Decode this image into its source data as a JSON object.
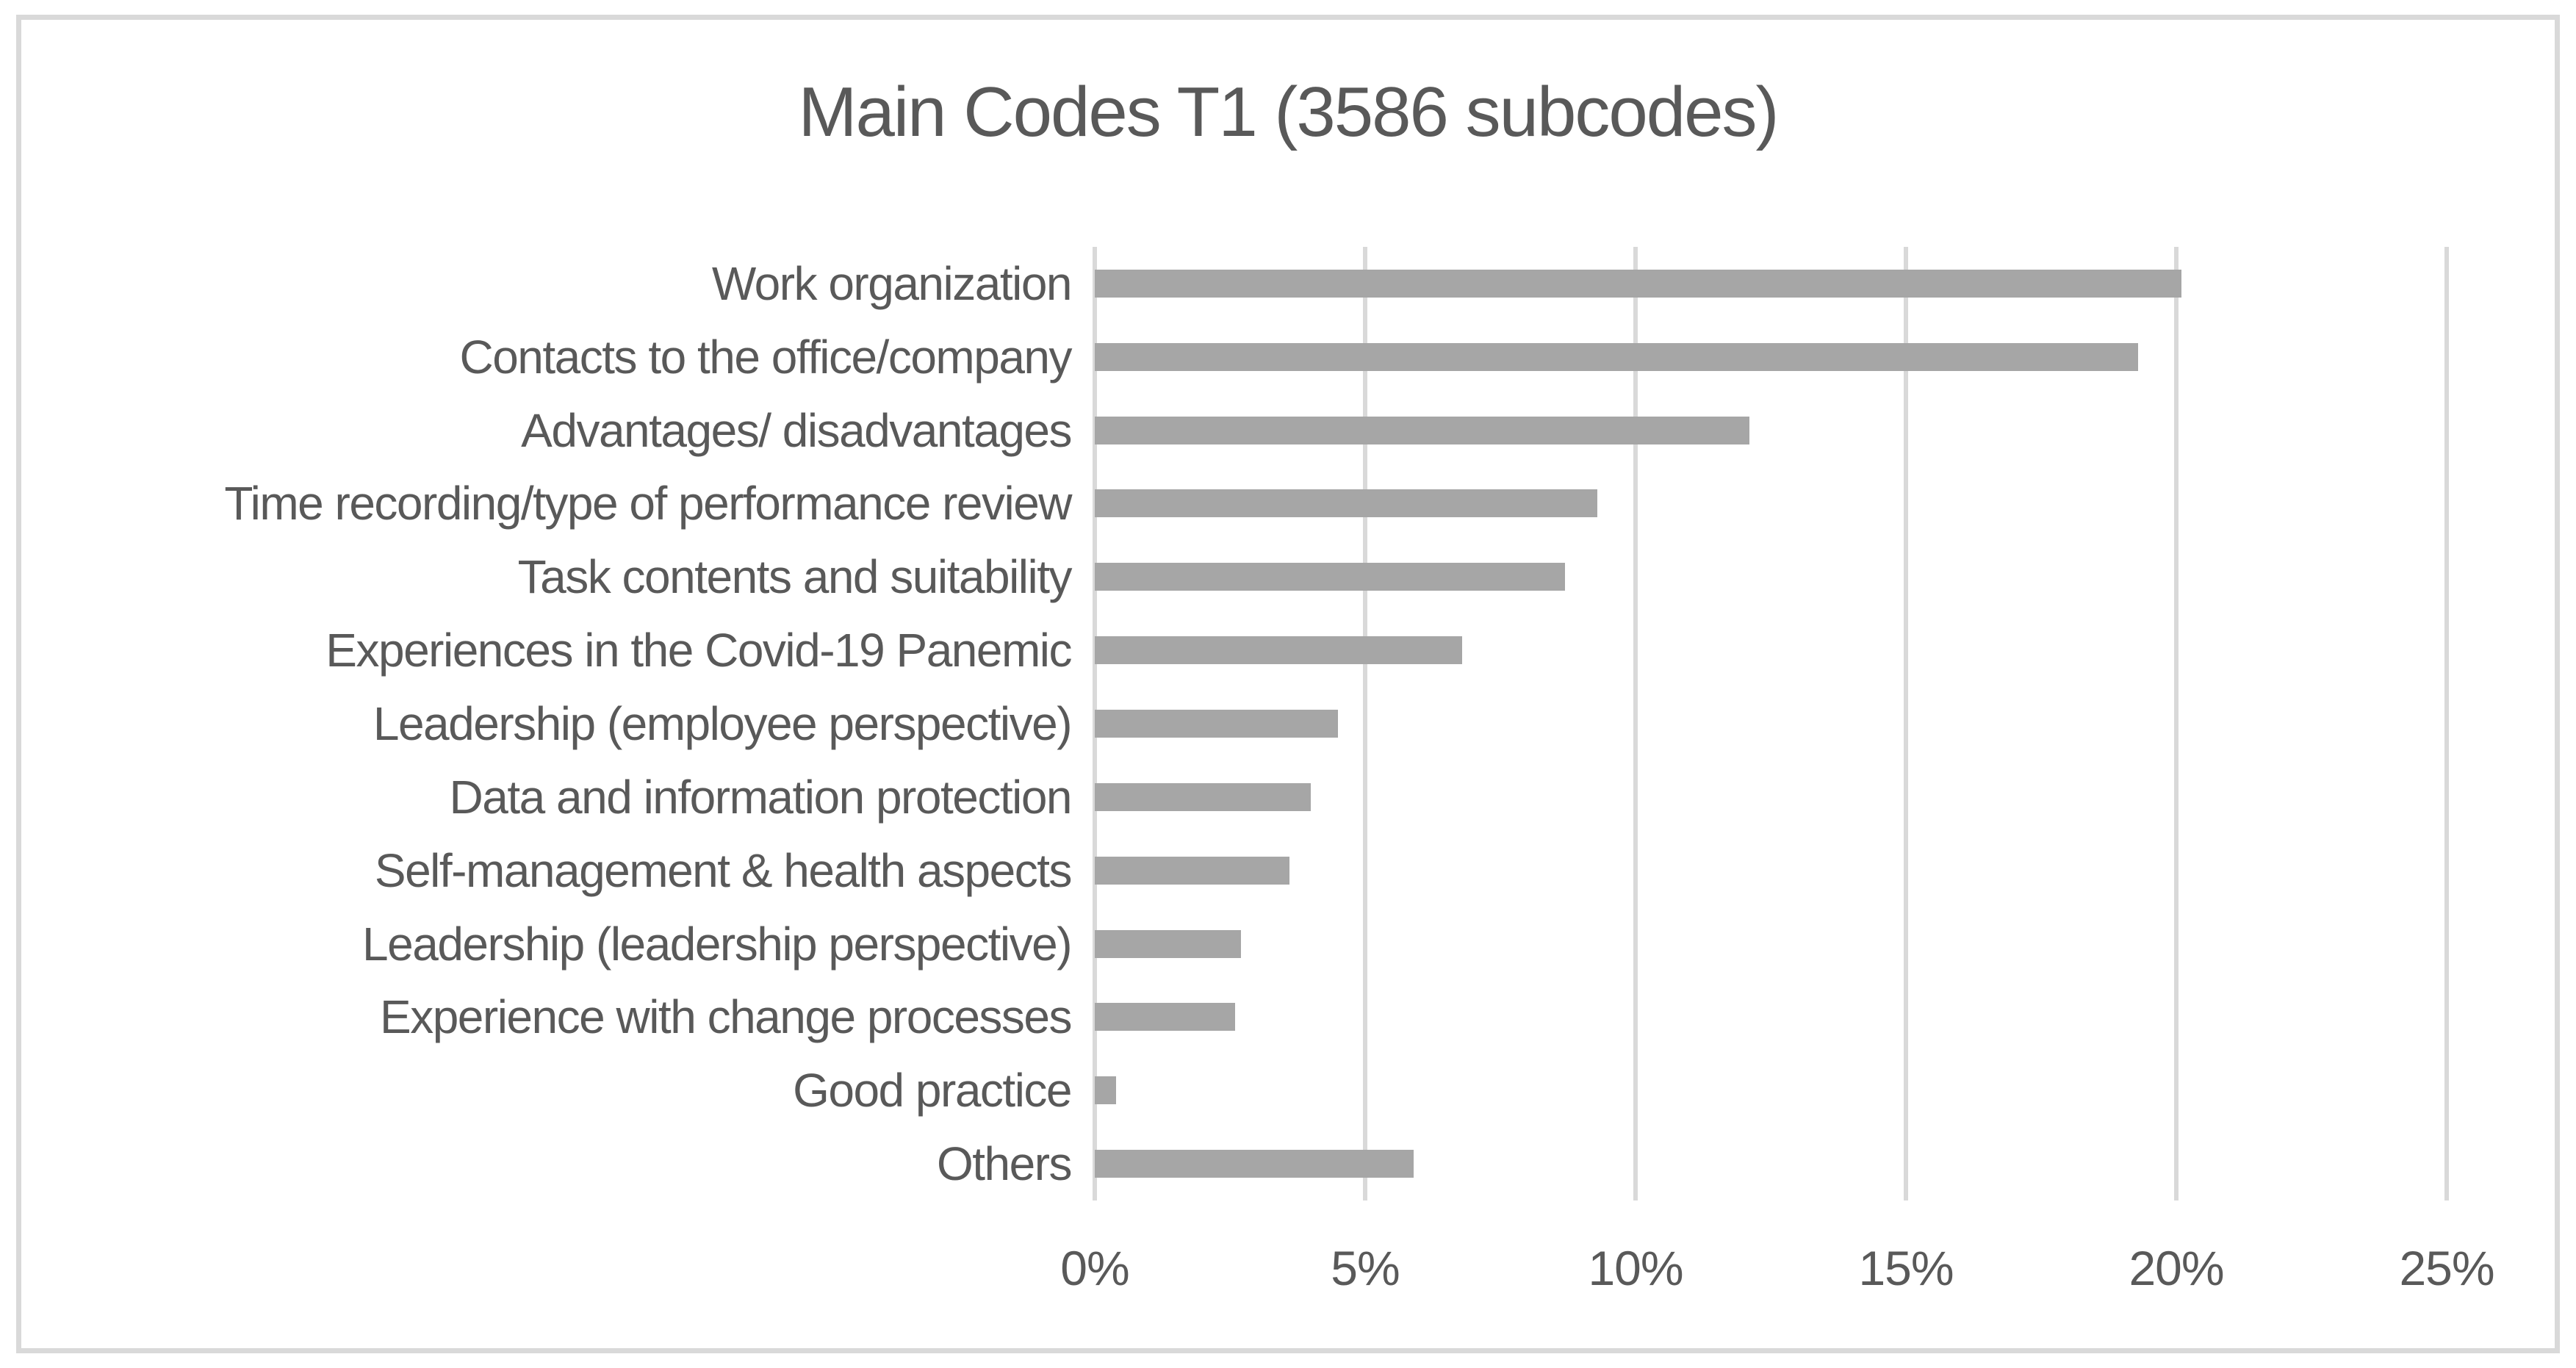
{
  "chart_data": {
    "type": "bar",
    "orientation": "horizontal",
    "title": "Main Codes T1 (3586 subcodes)",
    "categories": [
      "Work organization",
      "Contacts to the office/company",
      "Advantages/ disadvantages",
      "Time recording/type of performance review",
      "Task contents and suitability",
      "Experiences in the Covid-19 Panemic",
      "Leadership (employee perspective)",
      "Data and information protection",
      "Self-management & health aspects",
      "Leadership (leadership perspective)",
      "Experience with change processes",
      "Good practice",
      "Others"
    ],
    "values": [
      20.1,
      19.3,
      12.1,
      9.3,
      8.7,
      6.8,
      4.5,
      4.0,
      3.6,
      2.7,
      2.6,
      0.4,
      5.9
    ],
    "unit": "%",
    "xlabel": "",
    "ylabel": "",
    "xlim": [
      0,
      25
    ],
    "x_ticks": [
      "0%",
      "5%",
      "10%",
      "15%",
      "20%",
      "25%"
    ],
    "x_tick_values": [
      0,
      5,
      10,
      15,
      20,
      25
    ],
    "grid": "vertical-only",
    "legend": "none",
    "colors": {
      "bar": "#a6a6a6",
      "gridline": "#d9d9d9",
      "text": "#595959",
      "frame_border": "#d9d9d9",
      "background": "#ffffff"
    }
  }
}
